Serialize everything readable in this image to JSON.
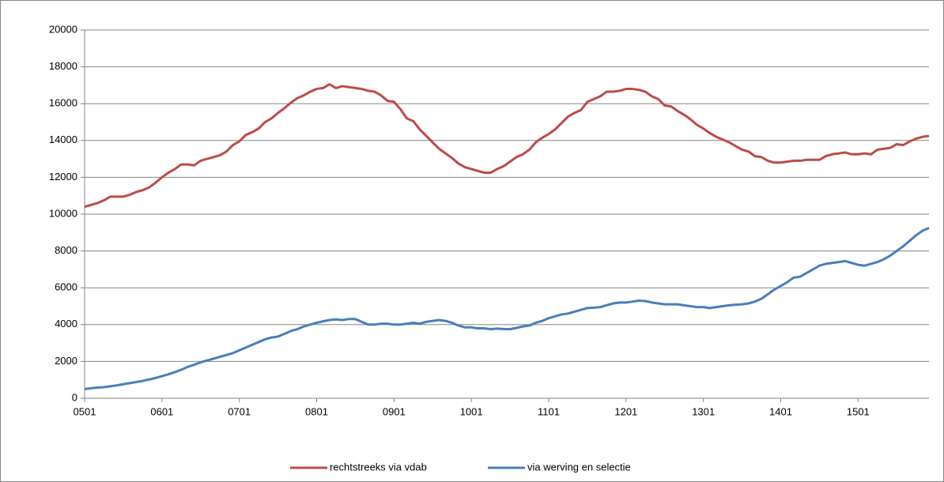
{
  "chart_data": {
    "type": "line",
    "categories": [
      "0501",
      null,
      null,
      null,
      null,
      null,
      null,
      null,
      null,
      null,
      null,
      null,
      "0601",
      null,
      null,
      null,
      null,
      null,
      null,
      null,
      null,
      null,
      null,
      null,
      "0701",
      null,
      null,
      null,
      null,
      null,
      null,
      null,
      null,
      null,
      null,
      null,
      "0801",
      null,
      null,
      null,
      null,
      null,
      null,
      null,
      null,
      null,
      null,
      null,
      "0901",
      null,
      null,
      null,
      null,
      null,
      null,
      null,
      null,
      null,
      null,
      null,
      "1001",
      null,
      null,
      null,
      null,
      null,
      null,
      null,
      null,
      null,
      null,
      null,
      "1101",
      null,
      null,
      null,
      null,
      null,
      null,
      null,
      null,
      null,
      null,
      null,
      "1201",
      null,
      null,
      null,
      null,
      null,
      null,
      null,
      null,
      null,
      null,
      null,
      "1301",
      null,
      null,
      null,
      null,
      null,
      null,
      null,
      null,
      null,
      null,
      null,
      "1401",
      null,
      null,
      null,
      null,
      null,
      null,
      null,
      null,
      null,
      null,
      null,
      "1501",
      null,
      null,
      null,
      null,
      null,
      null,
      null,
      null,
      null,
      null,
      null
    ],
    "series": [
      {
        "name": "rechtstreeks via vdab",
        "color": "#be4b48",
        "values": [
          10400,
          10500,
          10600,
          10750,
          10950,
          10950,
          10950,
          11050,
          11200,
          11300,
          11450,
          11700,
          12000,
          12250,
          12450,
          12700,
          12700,
          12650,
          12900,
          13000,
          13100,
          13200,
          13400,
          13750,
          13950,
          14300,
          14450,
          14650,
          15000,
          15200,
          15500,
          15750,
          16050,
          16300,
          16450,
          16650,
          16800,
          16850,
          17050,
          16850,
          16950,
          16900,
          16850,
          16800,
          16700,
          16650,
          16450,
          16150,
          16100,
          15700,
          15200,
          15050,
          14600,
          14250,
          13900,
          13550,
          13300,
          13050,
          12750,
          12550,
          12450,
          12350,
          12250,
          12250,
          12450,
          12600,
          12850,
          13100,
          13250,
          13500,
          13900,
          14150,
          14350,
          14600,
          14950,
          15300,
          15500,
          15650,
          16100,
          16250,
          16400,
          16650,
          16650,
          16700,
          16800,
          16800,
          16750,
          16650,
          16400,
          16250,
          15900,
          15850,
          15600,
          15400,
          15150,
          14850,
          14650,
          14400,
          14200,
          14050,
          13900,
          13700,
          13500,
          13400,
          13150,
          13100,
          12900,
          12800,
          12800,
          12850,
          12900,
          12900,
          12950,
          12950,
          12950,
          13150,
          13250,
          13300,
          13350,
          13250,
          13250,
          13300,
          13250,
          13500,
          13550,
          13600,
          13800,
          13750,
          13950,
          14100,
          14200,
          14250
        ]
      },
      {
        "name": "via werving en selectie",
        "color": "#4a7ebb",
        "values": [
          500,
          540,
          580,
          600,
          650,
          700,
          760,
          820,
          880,
          940,
          1020,
          1100,
          1200,
          1300,
          1420,
          1550,
          1700,
          1820,
          1950,
          2050,
          2150,
          2250,
          2350,
          2450,
          2600,
          2750,
          2900,
          3050,
          3200,
          3300,
          3350,
          3500,
          3650,
          3750,
          3900,
          4000,
          4100,
          4180,
          4250,
          4280,
          4250,
          4300,
          4300,
          4150,
          4000,
          4000,
          4050,
          4050,
          4000,
          4000,
          4050,
          4100,
          4050,
          4150,
          4200,
          4250,
          4200,
          4100,
          3950,
          3850,
          3850,
          3800,
          3800,
          3750,
          3780,
          3760,
          3750,
          3820,
          3900,
          3950,
          4100,
          4200,
          4350,
          4450,
          4550,
          4600,
          4700,
          4800,
          4900,
          4920,
          4950,
          5050,
          5150,
          5200,
          5200,
          5250,
          5300,
          5280,
          5200,
          5150,
          5100,
          5100,
          5100,
          5050,
          5000,
          4950,
          4950,
          4900,
          4950,
          5000,
          5050,
          5080,
          5100,
          5150,
          5250,
          5400,
          5650,
          5900,
          6100,
          6300,
          6550,
          6600,
          6800,
          7000,
          7200,
          7300,
          7350,
          7400,
          7450,
          7350,
          7250,
          7200,
          7300,
          7400,
          7550,
          7750,
          8000,
          8250,
          8550,
          8850,
          9100,
          9250
        ]
      }
    ],
    "ylim": [
      0,
      20000
    ],
    "yticks": [
      0,
      2000,
      4000,
      6000,
      8000,
      10000,
      12000,
      14000,
      16000,
      18000,
      20000
    ],
    "grid": true,
    "legend": "bottom"
  }
}
